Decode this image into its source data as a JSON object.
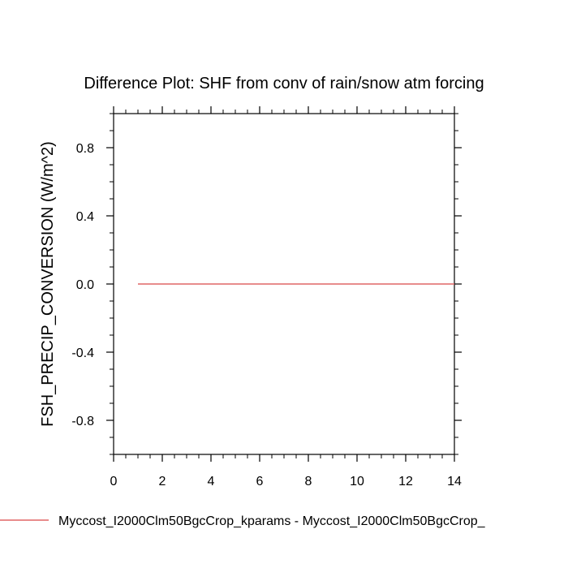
{
  "chart_data": {
    "type": "line",
    "title": "Difference Plot: SHF from conv of rain/snow atm forcing",
    "ylabel": "FSH_PRECIP_CONVERSION  (W/m^2)",
    "xlabel": "",
    "xlim": [
      0,
      14
    ],
    "ylim": [
      -1.0,
      1.0
    ],
    "x_ticks": [
      0,
      2,
      4,
      6,
      8,
      10,
      12,
      14
    ],
    "x_tick_labels": [
      "0",
      "2",
      "4",
      "6",
      "8",
      "10",
      "12",
      "14"
    ],
    "y_ticks": [
      -0.8,
      -0.4,
      0.0,
      0.4,
      0.8
    ],
    "y_tick_labels": [
      "-0.8",
      "-0.4",
      "0.0",
      "0.4",
      "0.8"
    ],
    "grid": false,
    "legend_position": "bottom-left",
    "series": [
      {
        "name": "Myccost_I2000Clm50BgcCrop_kparams - Myccost_I2000Clm50BgcCrop_",
        "color": "#e06666",
        "x": [
          1,
          2,
          3,
          4,
          5,
          6,
          7,
          8,
          9,
          10,
          11,
          12,
          13,
          14
        ],
        "y": [
          0,
          0,
          0,
          0,
          0,
          0,
          0,
          0,
          0,
          0,
          0,
          0,
          0,
          0
        ]
      }
    ]
  }
}
